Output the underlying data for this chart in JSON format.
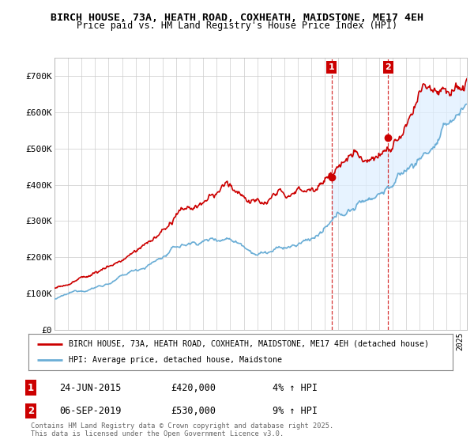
{
  "title_line1": "BIRCH HOUSE, 73A, HEATH ROAD, COXHEATH, MAIDSTONE, ME17 4EH",
  "title_line2": "Price paid vs. HM Land Registry's House Price Index (HPI)",
  "ylim": [
    0,
    750000
  ],
  "yticks": [
    0,
    100000,
    200000,
    300000,
    400000,
    500000,
    600000,
    700000
  ],
  "ytick_labels": [
    "£0",
    "£100K",
    "£200K",
    "£300K",
    "£400K",
    "£500K",
    "£600K",
    "£700K"
  ],
  "sale1_t": 2015.48,
  "sale1_p": 420000,
  "sale2_t": 2019.68,
  "sale2_p": 530000,
  "hpi_color": "#6baed6",
  "price_color": "#cc0000",
  "fill_color": "#ddeeff",
  "annotation_box_color": "#cc0000",
  "legend_label_price": "BIRCH HOUSE, 73A, HEATH ROAD, COXHEATH, MAIDSTONE, ME17 4EH (detached house)",
  "legend_label_hpi": "HPI: Average price, detached house, Maidstone",
  "sale_info": [
    {
      "num": "1",
      "date": "24-JUN-2015",
      "price": "£420,000",
      "change": "4% ↑ HPI"
    },
    {
      "num": "2",
      "date": "06-SEP-2019",
      "price": "£530,000",
      "change": "9% ↑ HPI"
    }
  ],
  "footer": "Contains HM Land Registry data © Crown copyright and database right 2025.\nThis data is licensed under the Open Government Licence v3.0.",
  "background_color": "#ffffff",
  "grid_color": "#cccccc"
}
